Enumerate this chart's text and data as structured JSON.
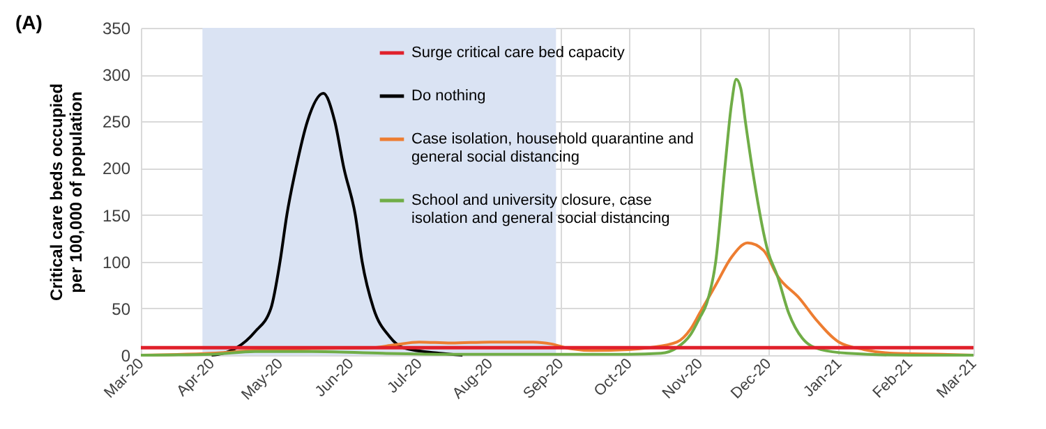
{
  "chart_data": {
    "type": "line",
    "title": "(A)",
    "ylabel": "Critical care beds occupied per 100,000 of population",
    "xlim": [
      "2020-03-01",
      "2021-03-01"
    ],
    "xticks": [
      {
        "value": "2020-03-01",
        "label": "Mar-20"
      },
      {
        "value": "2020-04-01",
        "label": "Apr-20"
      },
      {
        "value": "2020-05-01",
        "label": "May-20"
      },
      {
        "value": "2020-06-01",
        "label": "Jun-20"
      },
      {
        "value": "2020-07-01",
        "label": "Jul-20"
      },
      {
        "value": "2020-08-01",
        "label": "Aug-20"
      },
      {
        "value": "2020-09-01",
        "label": "Sep-20"
      },
      {
        "value": "2020-10-01",
        "label": "Oct-20"
      },
      {
        "value": "2020-11-01",
        "label": "Nov-20"
      },
      {
        "value": "2020-12-01",
        "label": "Dec-20"
      },
      {
        "value": "2021-01-01",
        "label": "Jan-21"
      },
      {
        "value": "2021-02-01",
        "label": "Feb-21"
      },
      {
        "value": "2021-03-01",
        "label": "Mar-21"
      }
    ],
    "ylim": [
      0,
      350
    ],
    "yticks": [
      0,
      50,
      100,
      150,
      200,
      250,
      300,
      350
    ],
    "grid": true,
    "legend": "top",
    "line_style": "solid",
    "bands": [
      {
        "axis": "x",
        "from": "2020-03-28",
        "to": "2020-08-30",
        "color": "#dae3f3"
      }
    ],
    "ref_lines": [
      {
        "axis": "y",
        "value": 8,
        "label": "Surge critical care bed capacity",
        "color": "#e0202b"
      }
    ],
    "series": [
      {
        "name": "Do nothing",
        "color": "#000000",
        "x": [
          "2020-04-01",
          "2020-04-06",
          "2020-04-12",
          "2020-04-20",
          "2020-04-27",
          "2020-05-01",
          "2020-05-04",
          "2020-05-08",
          "2020-05-13",
          "2020-05-20",
          "2020-05-25",
          "2020-05-29",
          "2020-06-03",
          "2020-06-06",
          "2020-06-11",
          "2020-06-18",
          "2020-06-24",
          "2020-07-10",
          "2020-07-20"
        ],
        "values": [
          0,
          2,
          8,
          25,
          50,
          100,
          150,
          200,
          250,
          280,
          250,
          200,
          150,
          100,
          50,
          20,
          8,
          2,
          0
        ]
      },
      {
        "name": "Case isolation, household quarantine and general social distancing",
        "color": "#ed7d31",
        "x": [
          "2020-03-01",
          "2020-04-01",
          "2020-04-20",
          "2020-05-15",
          "2020-06-10",
          "2020-06-20",
          "2020-07-01",
          "2020-07-15",
          "2020-08-01",
          "2020-08-20",
          "2020-08-28",
          "2020-09-05",
          "2020-09-15",
          "2020-10-01",
          "2020-10-10",
          "2020-10-22",
          "2020-10-28",
          "2020-11-01",
          "2020-11-08",
          "2020-11-15",
          "2020-11-22",
          "2020-11-29",
          "2020-12-05",
          "2020-12-15",
          "2020-12-22",
          "2021-01-01",
          "2021-01-12",
          "2021-01-25",
          "2021-02-15",
          "2021-03-01"
        ],
        "values": [
          0,
          2,
          5,
          7,
          8,
          11,
          14,
          13,
          14,
          14,
          12,
          7,
          5,
          6,
          8,
          14,
          28,
          45,
          75,
          105,
          120,
          112,
          85,
          60,
          38,
          14,
          6,
          2,
          1,
          0
        ]
      },
      {
        "name": "School and university closure, case isolation and general social distancing",
        "color": "#70ad47",
        "x": [
          "2020-03-01",
          "2020-04-01",
          "2020-04-20",
          "2020-05-15",
          "2020-06-15",
          "2020-07-15",
          "2020-08-15",
          "2020-09-15",
          "2020-10-01",
          "2020-10-15",
          "2020-10-22",
          "2020-10-28",
          "2020-11-01",
          "2020-11-04",
          "2020-11-08",
          "2020-11-12",
          "2020-11-15",
          "2020-11-17",
          "2020-11-19",
          "2020-11-21",
          "2020-11-24",
          "2020-12-01",
          "2020-12-05",
          "2020-12-10",
          "2020-12-16",
          "2020-12-24",
          "2021-01-05",
          "2021-02-01",
          "2021-03-01"
        ],
        "values": [
          0,
          1,
          4,
          4,
          2,
          1,
          1,
          1,
          1,
          2,
          8,
          22,
          40,
          55,
          100,
          200,
          270,
          295,
          285,
          250,
          200,
          110,
          85,
          45,
          18,
          6,
          2,
          0,
          0
        ]
      }
    ]
  }
}
